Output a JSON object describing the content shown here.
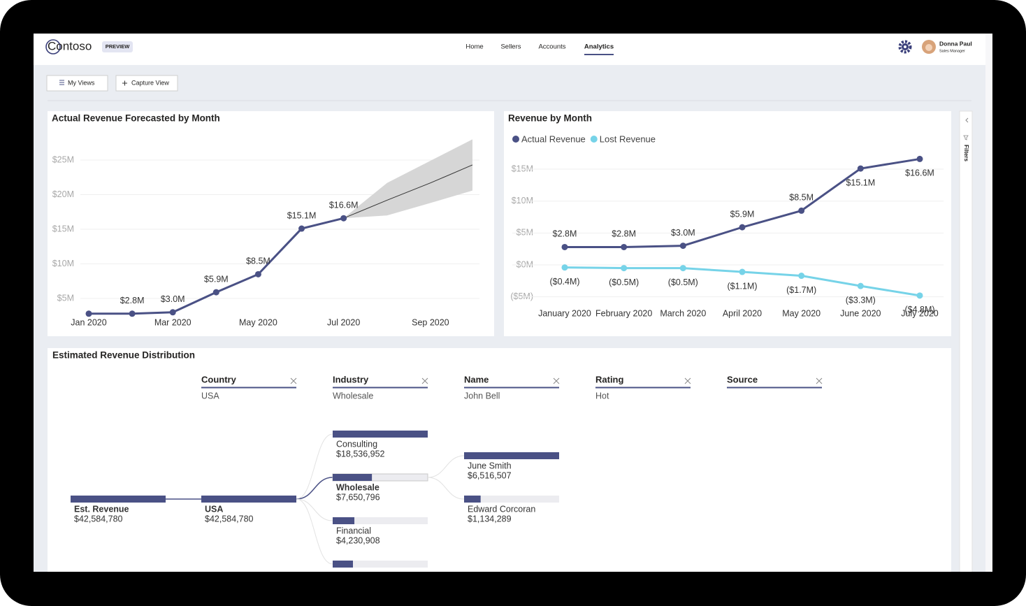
{
  "header": {
    "logo": "Contoso",
    "badge": "PREVIEW",
    "nav": [
      {
        "label": "Home"
      },
      {
        "label": "Sellers"
      },
      {
        "label": "Accounts"
      },
      {
        "label": "Analytics",
        "active": true
      }
    ],
    "user": {
      "name": "Donna Paul",
      "role": "Sales Manager"
    }
  },
  "toolbar": {
    "buttons": [
      "My Views",
      "Capture View"
    ]
  },
  "filters_pane": {
    "label": "Filters"
  },
  "chart_data": [
    {
      "type": "line",
      "title": "Actual Revenue Forecasted by Month",
      "x": [
        "Jan 2020",
        "Feb 2020",
        "Mar 2020",
        "Apr 2020",
        "May 2020",
        "Jun 2020",
        "Jul 2020"
      ],
      "series": [
        {
          "color": "#4a5185",
          "values": [
            2.8,
            2.8,
            3.0,
            5.9,
            8.5,
            15.1,
            16.6
          ],
          "value_labels": [
            null,
            "$2.8M",
            "$3.0M",
            "$5.9M",
            "$8.5M",
            "$15.1M",
            "$16.6M"
          ]
        }
      ],
      "forecast": {
        "x": [
          "Jul 2020",
          "Aug 2020",
          "Sep 2020",
          "Oct 2020"
        ],
        "values": [
          16.6,
          19.2,
          21.7,
          24.3
        ],
        "upper": [
          16.6,
          21.7,
          24.9,
          28.0
        ],
        "lower": [
          16.6,
          17.0,
          18.8,
          20.6
        ],
        "color": "#333333",
        "band_color": "#d6d6d6"
      },
      "xlim": [
        "Jan 2020",
        "Oct 2020"
      ],
      "xticks": [
        "Jan 2020",
        "Mar 2020",
        "May 2020",
        "Jul 2020",
        "Sep 2020"
      ],
      "ylim": [
        2,
        28.5
      ],
      "yticks": [
        {
          "value": 5,
          "label": "$5M"
        },
        {
          "value": 10,
          "label": "$10M"
        },
        {
          "value": 15,
          "label": "$15M"
        },
        {
          "value": 20,
          "label": "$20M"
        },
        {
          "value": 25,
          "label": "$25M"
        }
      ],
      "grid": true
    },
    {
      "type": "line",
      "title": "Revenue by Month",
      "categories": [
        "January 2020",
        "February 2020",
        "March 2020",
        "April 2020",
        "May 2020",
        "June 2020",
        "July 2020"
      ],
      "series": [
        {
          "name": "Actual Revenue",
          "color": "#4a5185",
          "values": [
            2.8,
            2.8,
            3.0,
            5.9,
            8.5,
            15.1,
            16.6
          ],
          "value_labels": [
            "$2.8M",
            "$2.8M",
            "$3.0M",
            "$5.9M",
            "$8.5M",
            "$15.1M",
            "$16.6M"
          ]
        },
        {
          "name": "Lost Revenue",
          "color": "#76d3e8",
          "values": [
            -0.4,
            -0.5,
            -0.5,
            -1.1,
            -1.7,
            -3.3,
            -4.8
          ],
          "value_labels": [
            "($0.4M)",
            "($0.5M)",
            "($0.5M)",
            "($1.1M)",
            "($1.7M)",
            "($3.3M)",
            "($4.8M)"
          ]
        }
      ],
      "ylim": [
        -6,
        17.5
      ],
      "yticks": [
        {
          "value": -5,
          "label": "($5M)"
        },
        {
          "value": 0,
          "label": "$0M"
        },
        {
          "value": 5,
          "label": "$5M"
        },
        {
          "value": 10,
          "label": "$10M"
        },
        {
          "value": 15,
          "label": "$15M"
        }
      ],
      "grid": true,
      "legend": "top-left"
    }
  ],
  "decomposition": {
    "title": "Estimated Revenue Distribution",
    "columns": [
      {
        "name": "Country",
        "selected": "USA"
      },
      {
        "name": "Industry",
        "selected": "Wholesale"
      },
      {
        "name": "Name",
        "selected": "John Bell"
      },
      {
        "name": "Rating",
        "selected": "Hot"
      },
      {
        "name": "Source"
      }
    ],
    "levels": [
      [
        {
          "name": "Est. Revenue",
          "value": 42584780,
          "value_label": "$42,584,780",
          "bold": true
        }
      ],
      [
        {
          "name": "USA",
          "value": 42584780,
          "value_label": "$42,584,780",
          "bold": true
        }
      ],
      [
        {
          "name": "Consulting",
          "value": 18536952,
          "value_label": "$18,536,952"
        },
        {
          "name": "Wholesale",
          "value": 7650796,
          "value_label": "$7,650,796",
          "bold": true
        },
        {
          "name": "Financial",
          "value": 4230908,
          "value_label": "$4,230,908"
        }
      ],
      [
        {
          "name": "June Smith",
          "value": 6516507,
          "value_label": "$6,516,507"
        },
        {
          "name": "Edward Corcoran",
          "value": 1134289,
          "value_label": "$1,134,289"
        }
      ]
    ],
    "bar_color": "#4a5185",
    "track_color": "#ececf0"
  }
}
